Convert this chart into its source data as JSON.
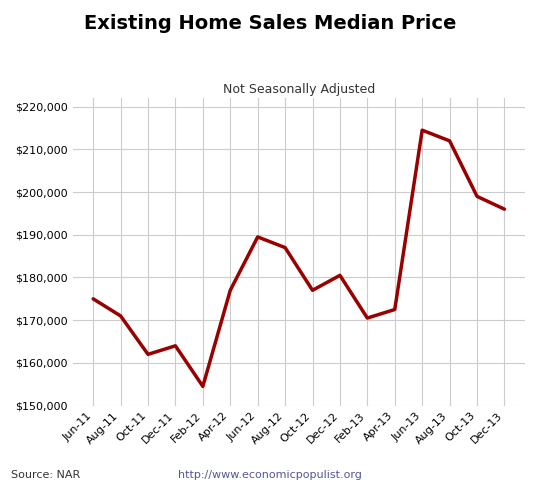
{
  "title": "Existing Home Sales Median Price",
  "subtitle": "Not Seasonally Adjusted",
  "source_text": "Source: NAR",
  "url_text": "http://www.economicpopulist.org",
  "line_color": "#990000",
  "line_width": 2.5,
  "background_color": "#ffffff",
  "grid_color": "#cccccc",
  "ylim": [
    150000,
    222000
  ],
  "yticks": [
    150000,
    160000,
    170000,
    180000,
    190000,
    200000,
    210000,
    220000
  ],
  "labels": [
    "Jun-11",
    "Aug-11",
    "Oct-11",
    "Dec-11",
    "Feb-12",
    "Apr-12",
    "Jun-12",
    "Aug-12",
    "Oct-12",
    "Dec-12",
    "Feb-13",
    "Apr-13",
    "Jun-13",
    "Aug-13",
    "Oct-13",
    "Dec-13"
  ],
  "values": [
    175000,
    171000,
    162000,
    164000,
    154500,
    177000,
    189500,
    187000,
    177000,
    180500,
    170500,
    172500,
    214500,
    212000,
    199000,
    196000
  ]
}
